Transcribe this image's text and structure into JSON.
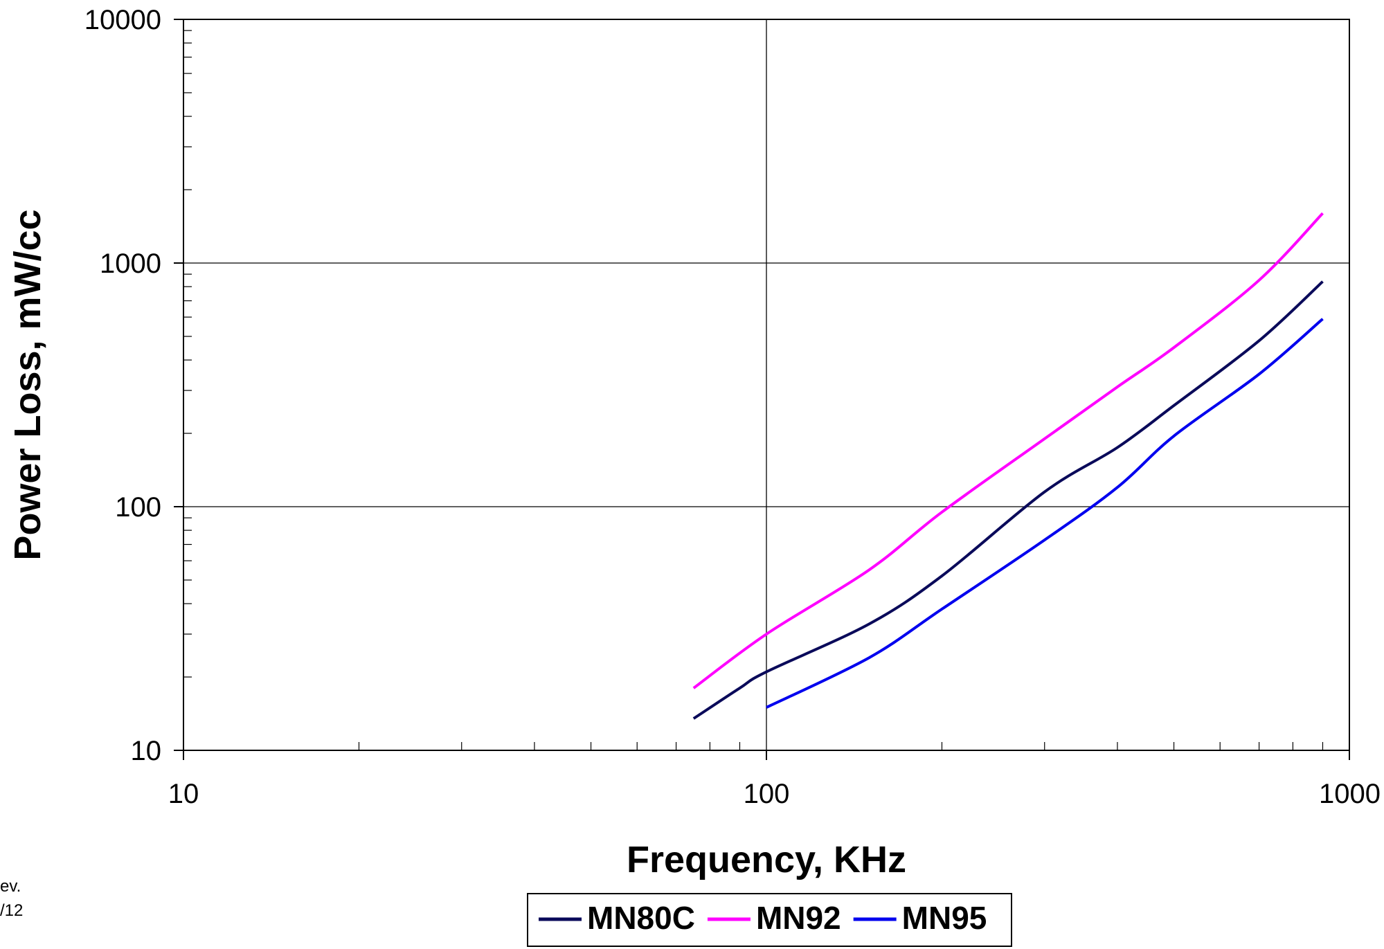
{
  "chart_data": {
    "type": "line",
    "xlabel": "Frequency, KHz",
    "ylabel": "Power Loss, mW/cc",
    "x_scale": "log",
    "y_scale": "log",
    "xlim": [
      10,
      1000
    ],
    "ylim": [
      10,
      10000
    ],
    "x_ticks": [
      10,
      100,
      1000
    ],
    "y_ticks": [
      10,
      100,
      1000,
      10000
    ],
    "x_tick_labels": [
      "10",
      "100",
      "1000"
    ],
    "y_tick_labels": [
      "10",
      "100",
      "1000",
      "10000"
    ],
    "grid": true,
    "legend_position": "bottom",
    "series": [
      {
        "name": "MN80C",
        "color": "#0a0a5a",
        "points": [
          [
            75,
            13.5
          ],
          [
            90,
            18
          ],
          [
            100,
            21
          ],
          [
            150,
            33
          ],
          [
            200,
            52
          ],
          [
            300,
            115
          ],
          [
            400,
            175
          ],
          [
            500,
            260
          ],
          [
            700,
            480
          ],
          [
            900,
            840
          ]
        ]
      },
      {
        "name": "MN92",
        "color": "#ff00ff",
        "points": [
          [
            75,
            18
          ],
          [
            100,
            30
          ],
          [
            150,
            55
          ],
          [
            200,
            95
          ],
          [
            300,
            190
          ],
          [
            400,
            310
          ],
          [
            500,
            450
          ],
          [
            700,
            850
          ],
          [
            900,
            1600
          ]
        ]
      },
      {
        "name": "MN95",
        "color": "#0000ee",
        "points": [
          [
            100,
            15
          ],
          [
            150,
            24
          ],
          [
            200,
            38
          ],
          [
            300,
            73
          ],
          [
            400,
            120
          ],
          [
            500,
            195
          ],
          [
            700,
            350
          ],
          [
            900,
            590
          ]
        ]
      }
    ]
  },
  "side_note": {
    "line1": "ev.",
    "line2": "/12"
  }
}
